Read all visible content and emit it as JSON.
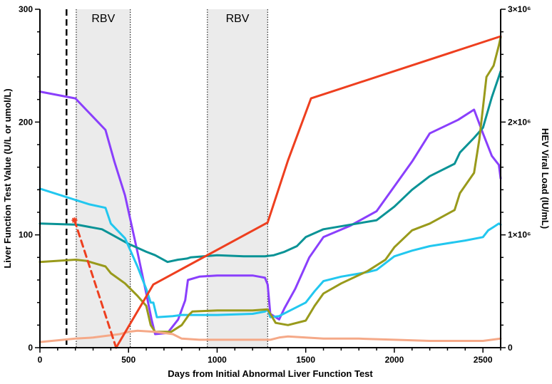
{
  "chart_data": {
    "type": "line",
    "xlabel": "Days from Initial Abnormal Liver Function Test",
    "ylabel_left": "Liver Function Test Value (U/L or umol/L)",
    "ylabel_right": "HEV Viral Load (IU/mL)",
    "xlim": [
      0,
      2600
    ],
    "ylim_left": [
      0,
      300
    ],
    "ylim_right": [
      0,
      3000000
    ],
    "x_ticks": [
      "0",
      "500",
      "1000",
      "1500",
      "2000",
      "2500"
    ],
    "y_left_ticks": [
      "0",
      "100",
      "200",
      "300"
    ],
    "y_right_ticks": [
      "0",
      "1×10⁶",
      "2×10⁶",
      "3×10⁶"
    ],
    "grid": false,
    "shaded_regions": [
      {
        "label": "RBV",
        "x_start": 205,
        "x_end": 510
      },
      {
        "label": "RBV",
        "x_start": 945,
        "x_end": 1285
      }
    ],
    "vertical_dashed_line_x": 150,
    "series": [
      {
        "color": "#8a3ffc",
        "axis": "left",
        "points": [
          [
            0,
            227
          ],
          [
            200,
            221
          ],
          [
            370,
            193
          ],
          [
            420,
            165
          ],
          [
            480,
            135
          ],
          [
            550,
            85
          ],
          [
            600,
            48
          ],
          [
            630,
            25
          ],
          [
            650,
            12
          ],
          [
            720,
            13
          ],
          [
            780,
            25
          ],
          [
            820,
            42
          ],
          [
            835,
            60
          ],
          [
            900,
            63
          ],
          [
            1000,
            64
          ],
          [
            1200,
            64
          ],
          [
            1270,
            62
          ],
          [
            1285,
            56
          ],
          [
            1300,
            30
          ],
          [
            1350,
            25
          ],
          [
            1380,
            35
          ],
          [
            1440,
            52
          ],
          [
            1520,
            80
          ],
          [
            1600,
            98
          ],
          [
            1750,
            108
          ],
          [
            1900,
            121
          ],
          [
            2100,
            165
          ],
          [
            2200,
            190
          ],
          [
            2360,
            202
          ],
          [
            2450,
            211
          ],
          [
            2500,
            190
          ],
          [
            2550,
            170
          ],
          [
            2590,
            162
          ],
          [
            2600,
            150
          ]
        ]
      },
      {
        "color": "#0a9396",
        "axis": "left",
        "points": [
          [
            0,
            110
          ],
          [
            210,
            109
          ],
          [
            350,
            105
          ],
          [
            420,
            99
          ],
          [
            500,
            92
          ],
          [
            600,
            85
          ],
          [
            650,
            82
          ],
          [
            720,
            76
          ],
          [
            780,
            78
          ],
          [
            830,
            79
          ],
          [
            850,
            80
          ],
          [
            1000,
            82
          ],
          [
            1150,
            81
          ],
          [
            1270,
            81
          ],
          [
            1320,
            82
          ],
          [
            1380,
            85
          ],
          [
            1450,
            90
          ],
          [
            1500,
            98
          ],
          [
            1600,
            105
          ],
          [
            1900,
            113
          ],
          [
            2000,
            125
          ],
          [
            2100,
            140
          ],
          [
            2200,
            152
          ],
          [
            2340,
            163
          ],
          [
            2370,
            173
          ],
          [
            2450,
            186
          ],
          [
            2500,
            195
          ],
          [
            2550,
            222
          ],
          [
            2600,
            245
          ]
        ]
      },
      {
        "color": "#22c7ef",
        "axis": "left",
        "points": [
          [
            0,
            141
          ],
          [
            280,
            127
          ],
          [
            370,
            124
          ],
          [
            400,
            110
          ],
          [
            480,
            97
          ],
          [
            550,
            72
          ],
          [
            600,
            52
          ],
          [
            625,
            40
          ],
          [
            640,
            40
          ],
          [
            660,
            27
          ],
          [
            750,
            28
          ],
          [
            800,
            29
          ],
          [
            1000,
            29
          ],
          [
            1200,
            30
          ],
          [
            1270,
            32
          ],
          [
            1285,
            34
          ],
          [
            1300,
            27
          ],
          [
            1350,
            28
          ],
          [
            1400,
            32
          ],
          [
            1500,
            40
          ],
          [
            1550,
            50
          ],
          [
            1600,
            59
          ],
          [
            1700,
            63
          ],
          [
            1850,
            67
          ],
          [
            1900,
            69
          ],
          [
            2000,
            81
          ],
          [
            2100,
            86
          ],
          [
            2200,
            90
          ],
          [
            2400,
            95
          ],
          [
            2500,
            98
          ],
          [
            2530,
            104
          ],
          [
            2560,
            107
          ],
          [
            2590,
            110
          ],
          [
            2600,
            109
          ]
        ]
      },
      {
        "color": "#999a1b",
        "axis": "left",
        "points": [
          [
            0,
            76
          ],
          [
            200,
            78
          ],
          [
            260,
            77
          ],
          [
            370,
            72
          ],
          [
            400,
            66
          ],
          [
            480,
            57
          ],
          [
            550,
            46
          ],
          [
            600,
            37
          ],
          [
            625,
            20
          ],
          [
            650,
            14
          ],
          [
            740,
            14
          ],
          [
            800,
            20
          ],
          [
            840,
            29
          ],
          [
            860,
            32
          ],
          [
            1000,
            33
          ],
          [
            1200,
            33
          ],
          [
            1285,
            34
          ],
          [
            1300,
            30
          ],
          [
            1330,
            22
          ],
          [
            1400,
            20
          ],
          [
            1500,
            24
          ],
          [
            1550,
            37
          ],
          [
            1600,
            48
          ],
          [
            1700,
            57
          ],
          [
            1850,
            68
          ],
          [
            1950,
            78
          ],
          [
            2000,
            89
          ],
          [
            2100,
            104
          ],
          [
            2200,
            110
          ],
          [
            2340,
            122
          ],
          [
            2370,
            137
          ],
          [
            2450,
            155
          ],
          [
            2480,
            185
          ],
          [
            2520,
            240
          ],
          [
            2560,
            250
          ],
          [
            2590,
            268
          ],
          [
            2600,
            275
          ]
        ]
      },
      {
        "color": "#f5a988",
        "axis": "left",
        "points": [
          [
            0,
            5
          ],
          [
            200,
            8
          ],
          [
            300,
            9
          ],
          [
            450,
            12
          ],
          [
            500,
            14
          ],
          [
            550,
            15
          ],
          [
            650,
            14
          ],
          [
            700,
            13
          ],
          [
            750,
            12
          ],
          [
            800,
            8
          ],
          [
            900,
            7
          ],
          [
            1000,
            7
          ],
          [
            1200,
            7
          ],
          [
            1300,
            7
          ],
          [
            1350,
            9
          ],
          [
            1400,
            10
          ],
          [
            1500,
            9
          ],
          [
            1600,
            8
          ],
          [
            1800,
            8
          ],
          [
            2000,
            7
          ],
          [
            2200,
            6
          ],
          [
            2400,
            6
          ],
          [
            2500,
            6
          ],
          [
            2600,
            8
          ]
        ]
      },
      {
        "color": "#ee3f1f",
        "axis": "right",
        "points": [
          [
            430,
            0
          ],
          [
            640,
            560000
          ],
          [
            1285,
            1110000
          ],
          [
            1400,
            1660000
          ],
          [
            1530,
            2210000
          ],
          [
            2600,
            2760000
          ]
        ]
      },
      {
        "color": "#ee3f1f",
        "axis": "right",
        "dashed": true,
        "points": [
          [
            195,
            1130000
          ],
          [
            430,
            0
          ]
        ]
      }
    ]
  }
}
